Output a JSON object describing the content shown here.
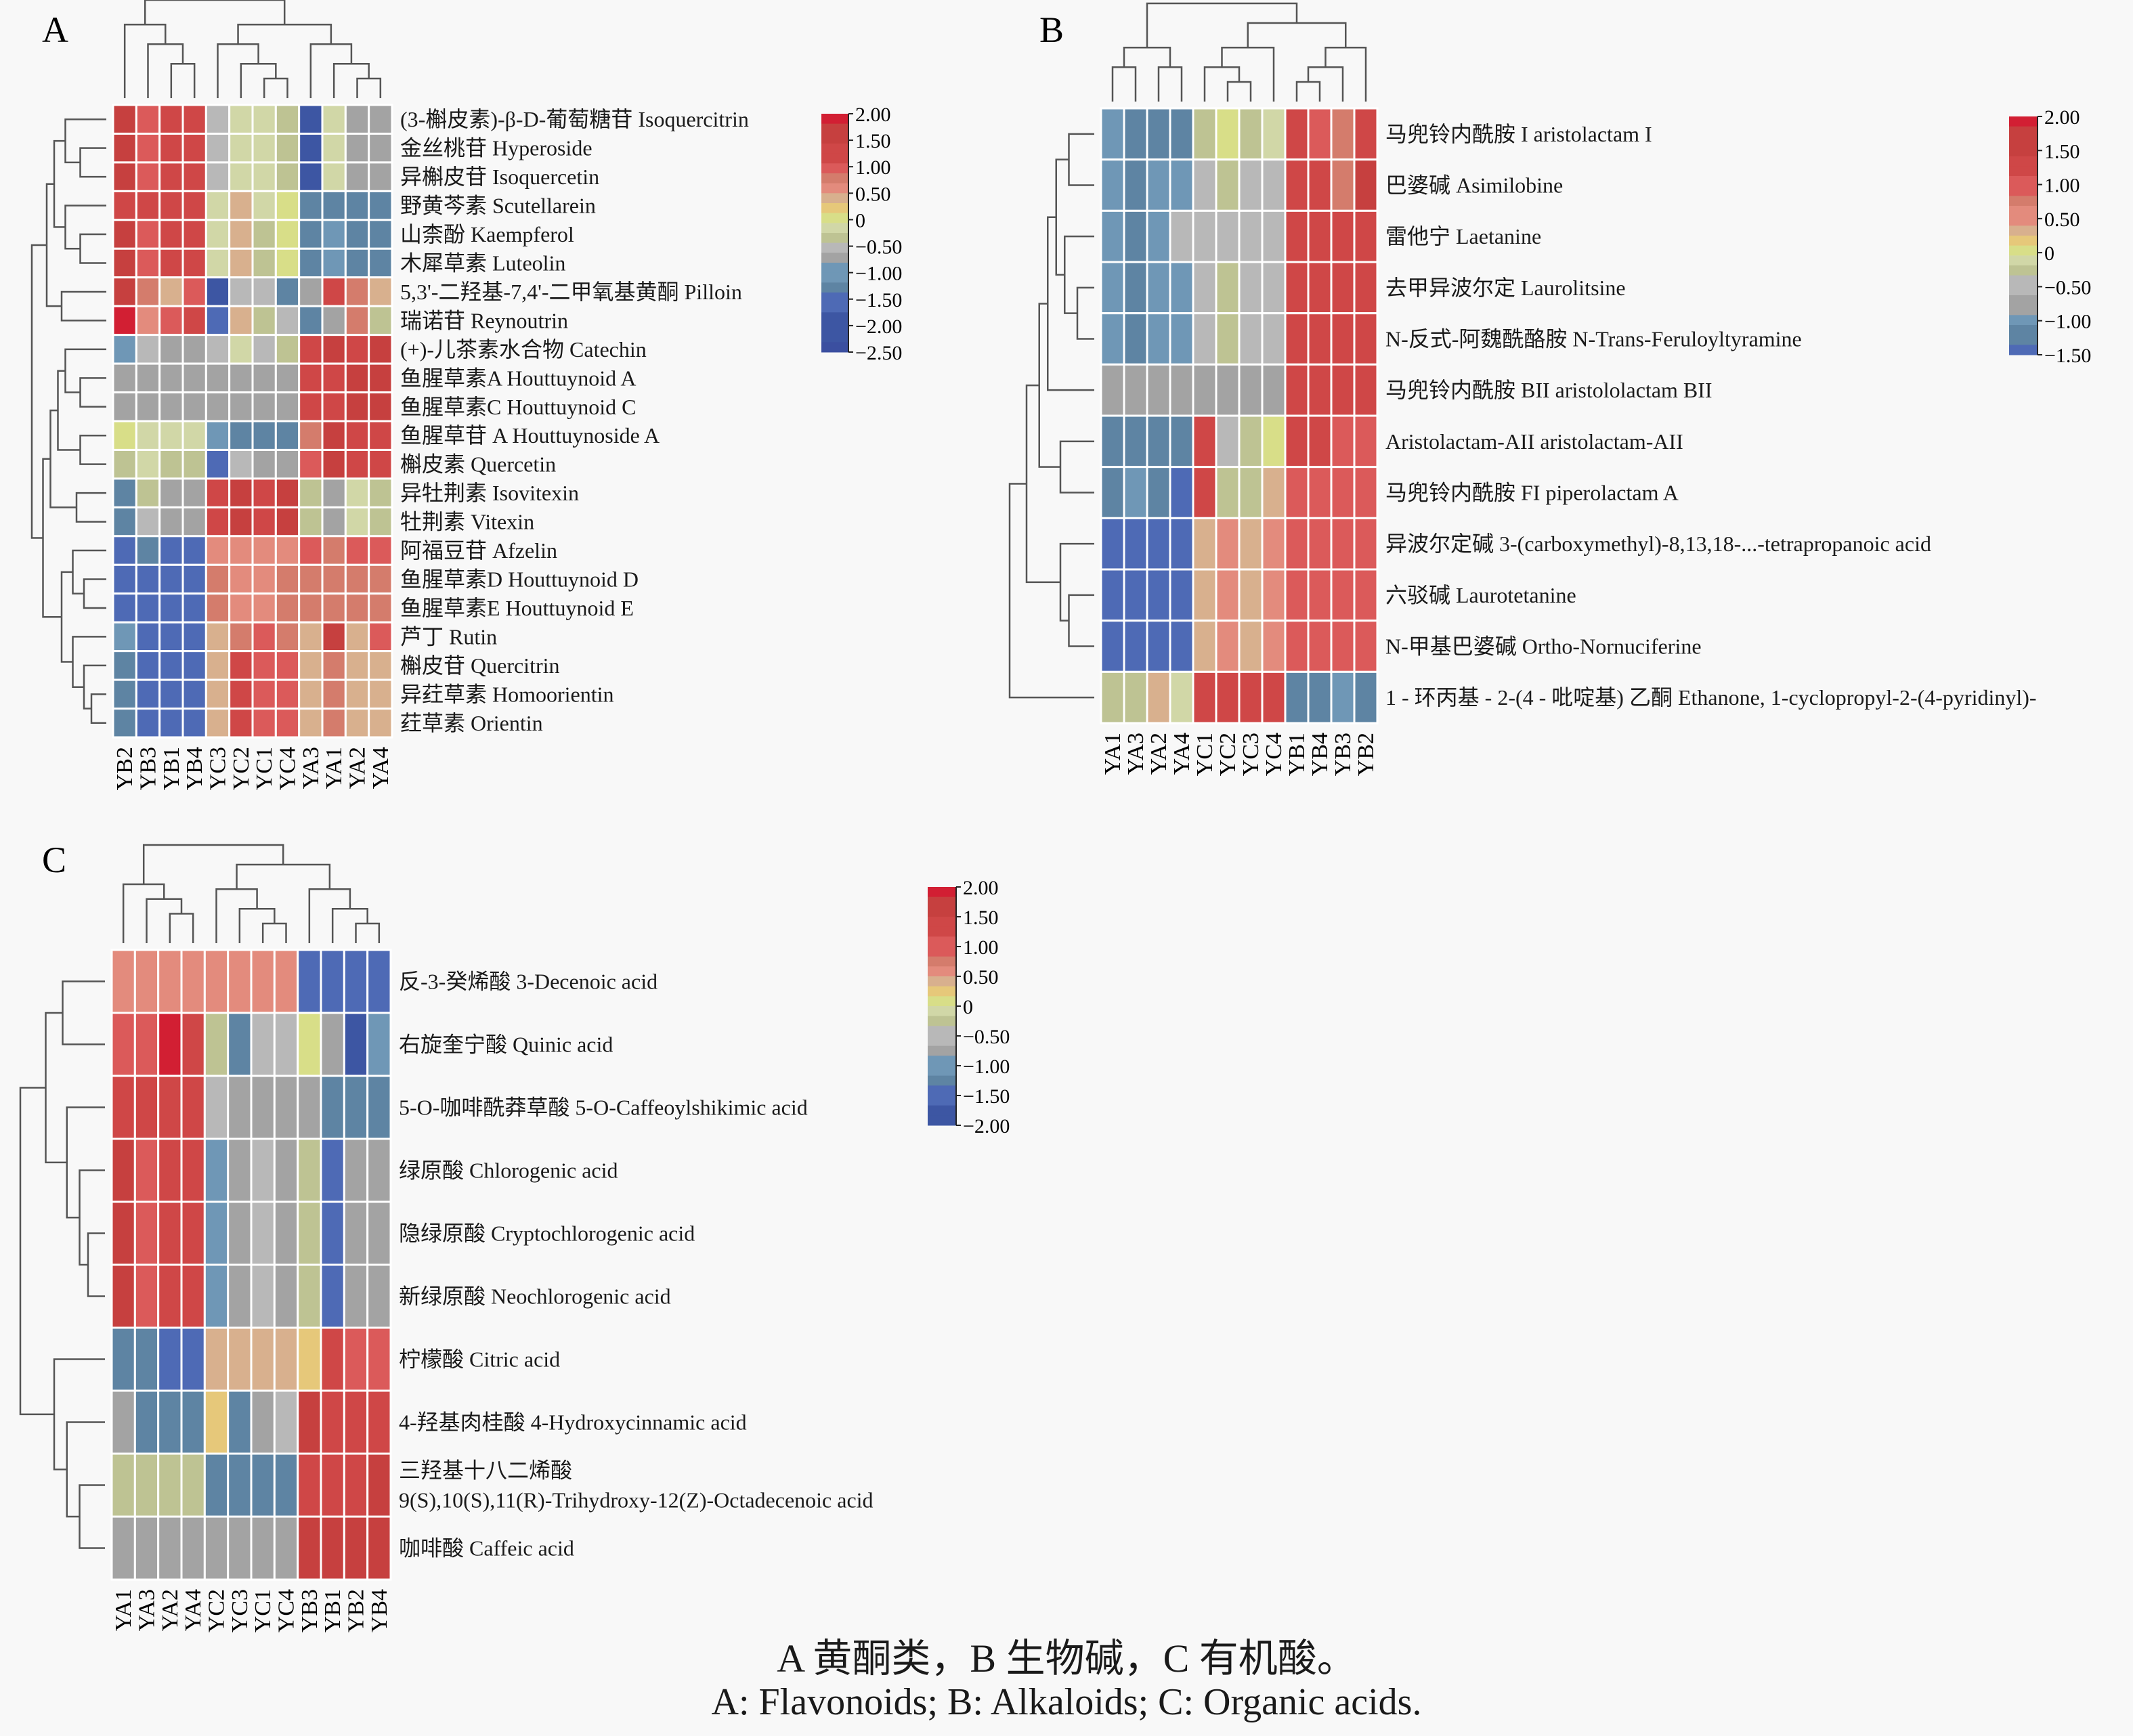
{
  "figure": {
    "caption_zh": "A 黄酮类，B 生物碱，C 有机酸。",
    "caption_en": "A: Flavonoids; B: Alkaloids; C: Organic acids."
  },
  "chart_data": [
    {
      "type": "heatmap",
      "panel": "A",
      "title": "A",
      "subtitle": "Flavonoids",
      "columns": [
        "YB2",
        "YB3",
        "YB1",
        "YB4",
        "YC3",
        "YC2",
        "YC1",
        "YC4",
        "YA3",
        "YA1",
        "YA2",
        "YA4"
      ],
      "rows": [
        "(3-槲皮素)-β-D-葡萄糖苷 Isoquercitrin",
        "金丝桃苷 Hyperoside",
        "异槲皮苷 Isoquercetin",
        "野黄芩素 Scutellarein",
        "山柰酚 Kaempferol",
        "木犀草素 Luteolin",
        "5,3'-二羟基-7,4'-二甲氧基黄酮 Pilloin",
        "瑞诺苷 Reynoutrin",
        "(+)-儿茶素水合物 Catechin",
        "鱼腥草素A Houttuynoid A",
        "鱼腥草素C Houttuynoid C",
        "鱼腥草苷 A Houttuynoside A",
        "槲皮素 Quercetin",
        "异牡荆素 Isovitexin",
        "牡荆素 Vitexin",
        "阿福豆苷 Afzelin",
        "鱼腥草素D Houttuynoid D",
        "鱼腥草素E Houttuynoid E",
        "芦丁 Rutin",
        "槲皮苷 Quercitrin",
        "异荭草素 Homoorientin",
        "荭草素 Orientin"
      ],
      "values": [
        [
          1.6,
          1.0,
          1.3,
          1.3,
          -0.6,
          -0.1,
          -0.1,
          -0.3,
          -2.0,
          -0.1,
          -0.8,
          -0.8
        ],
        [
          1.6,
          1.0,
          1.3,
          1.3,
          -0.6,
          -0.1,
          -0.1,
          -0.3,
          -1.8,
          -0.1,
          -0.8,
          -0.8
        ],
        [
          1.6,
          1.0,
          1.3,
          1.3,
          -0.6,
          -0.1,
          -0.1,
          -0.3,
          -1.8,
          -0.1,
          -0.8,
          -0.8
        ],
        [
          1.3,
          1.4,
          1.3,
          1.3,
          -0.1,
          0.4,
          -0.1,
          0.0,
          -1.3,
          -1.3,
          -1.3,
          -1.3
        ],
        [
          1.5,
          1.1,
          1.3,
          1.3,
          -0.1,
          0.4,
          -0.3,
          0.0,
          -1.3,
          -1.0,
          -1.3,
          -1.3
        ],
        [
          1.5,
          1.1,
          1.4,
          1.3,
          -0.1,
          0.4,
          -0.3,
          0.0,
          -1.3,
          -1.0,
          -1.3,
          -1.3
        ],
        [
          1.5,
          0.7,
          0.4,
          1.0,
          -2.2,
          -0.6,
          -0.6,
          -1.1,
          -0.8,
          1.3,
          0.7,
          0.4
        ],
        [
          1.9,
          0.5,
          1.0,
          1.3,
          -1.5,
          0.3,
          -0.3,
          -0.6,
          -1.3,
          -0.8,
          0.7,
          -0.3
        ],
        [
          -1.0,
          -0.6,
          -0.8,
          -0.8,
          -0.6,
          -0.1,
          -0.6,
          -0.3,
          1.3,
          1.5,
          1.3,
          1.6
        ],
        [
          -0.8,
          -0.8,
          -0.8,
          -0.8,
          -0.8,
          -0.8,
          -0.8,
          -0.8,
          1.3,
          1.3,
          1.6,
          1.6
        ],
        [
          -0.8,
          -0.8,
          -0.8,
          -0.8,
          -0.8,
          -0.8,
          -0.8,
          -0.8,
          1.4,
          1.3,
          1.6,
          1.6
        ],
        [
          0.1,
          -0.1,
          -0.1,
          -0.1,
          -1.0,
          -1.1,
          -1.1,
          -1.1,
          0.8,
          1.6,
          1.4,
          1.3
        ],
        [
          -0.3,
          -0.1,
          -0.3,
          -0.3,
          -1.4,
          -0.6,
          -0.8,
          -0.8,
          1.0,
          1.6,
          1.4,
          1.4
        ],
        [
          -1.1,
          -0.3,
          -0.8,
          -0.8,
          1.3,
          1.6,
          1.4,
          1.6,
          -0.3,
          -0.8,
          -0.1,
          -0.3
        ],
        [
          -1.1,
          -0.6,
          -0.8,
          -0.8,
          1.3,
          1.6,
          1.4,
          1.6,
          -0.3,
          -0.8,
          -0.1,
          -0.3
        ],
        [
          -1.6,
          -1.3,
          -1.4,
          -1.4,
          0.6,
          0.6,
          0.6,
          0.6,
          1.0,
          0.7,
          1.1,
          0.9
        ],
        [
          -1.4,
          -1.4,
          -1.4,
          -1.4,
          0.7,
          0.6,
          0.6,
          0.7,
          0.7,
          0.7,
          0.7,
          0.7
        ],
        [
          -1.4,
          -1.4,
          -1.4,
          -1.4,
          0.7,
          0.6,
          0.6,
          0.7,
          0.7,
          0.7,
          0.7,
          0.7
        ],
        [
          -1.0,
          -1.6,
          -1.4,
          -1.4,
          0.3,
          0.7,
          1.0,
          0.7,
          0.3,
          1.6,
          0.4,
          1.0
        ],
        [
          -1.3,
          -1.4,
          -1.4,
          -1.4,
          0.4,
          1.3,
          1.1,
          1.0,
          0.4,
          0.7,
          0.4,
          0.4
        ],
        [
          -1.3,
          -1.4,
          -1.4,
          -1.4,
          0.4,
          1.3,
          1.1,
          1.0,
          0.4,
          0.7,
          0.4,
          0.4
        ],
        [
          -1.3,
          -1.4,
          -1.4,
          -1.4,
          0.4,
          1.3,
          1.1,
          1.0,
          0.4,
          0.7,
          0.4,
          0.4
        ]
      ],
      "colorbar": {
        "ticks": [
          "2.00",
          "1.50",
          "1.00",
          "0.50",
          "0",
          "−0.50",
          "−1.00",
          "−1.50",
          "−2.00",
          "−2.50"
        ],
        "range": [
          -2.5,
          2.0
        ]
      }
    },
    {
      "type": "heatmap",
      "panel": "B",
      "title": "B",
      "subtitle": "Alkaloids",
      "columns": [
        "YA1",
        "YA3",
        "YA2",
        "YA4",
        "YC1",
        "YC2",
        "YC3",
        "YC4",
        "YB1",
        "YB4",
        "YB3",
        "YB2"
      ],
      "rows": [
        "马兜铃内酰胺 I aristolactam I",
        "巴婆碱 Asimilobine",
        "雷他宁 Laetanine",
        "去甲异波尔定 Laurolitsine",
        "N-反式-阿魏酰酪胺 N-Trans-Feruloyltyramine",
        "马兜铃内酰胺 BII aristololactam BII",
        "Aristolactam-AII aristolactam-AII",
        "马兜铃内酰胺 FI piperolactam A",
        "异波尔定碱 3-(carboxymethyl)-8,13,18-...-tetrapropanoic acid",
        "六驳碱 Laurotetanine",
        "N-甲基巴婆碱 Ortho-Nornuciferine",
        "1 - 环丙基 - 2-(4 - 吡啶基) 乙酮 Ethanone, 1-cyclopropyl-2-(4-pyridinyl)-"
      ],
      "values": [
        [
          -1.0,
          -1.2,
          -1.1,
          -1.2,
          -0.2,
          0.0,
          -0.2,
          -0.1,
          1.2,
          1.1,
          0.8,
          1.4
        ],
        [
          -1.0,
          -1.2,
          -1.0,
          -1.0,
          -0.4,
          -0.2,
          -0.4,
          -0.4,
          1.4,
          1.4,
          0.8,
          1.8
        ],
        [
          -1.0,
          -1.2,
          -1.0,
          -0.6,
          -0.5,
          -0.4,
          -0.5,
          -0.5,
          1.2,
          1.4,
          1.4,
          1.4
        ],
        [
          -1.0,
          -1.1,
          -1.0,
          -1.0,
          -0.5,
          -0.3,
          -0.5,
          -0.5,
          1.2,
          1.4,
          1.4,
          1.4
        ],
        [
          -1.0,
          -1.1,
          -1.0,
          -1.0,
          -0.5,
          -0.3,
          -0.5,
          -0.5,
          1.2,
          1.4,
          1.4,
          1.4
        ],
        [
          -0.8,
          -0.8,
          -0.8,
          -0.8,
          -0.8,
          -0.8,
          -0.8,
          -0.8,
          1.4,
          1.4,
          1.4,
          1.4
        ],
        [
          -1.2,
          -1.2,
          -1.2,
          -1.2,
          1.2,
          -0.5,
          -0.2,
          0.1,
          1.2,
          1.2,
          0.9,
          1.1
        ],
        [
          -1.2,
          -1.0,
          -1.2,
          -1.4,
          1.2,
          -0.3,
          -0.2,
          0.3,
          1.1,
          1.1,
          0.9,
          1.1
        ],
        [
          -1.4,
          -1.4,
          -1.4,
          -1.4,
          0.4,
          0.5,
          0.4,
          0.5,
          0.9,
          0.9,
          0.9,
          0.9
        ],
        [
          -1.4,
          -1.4,
          -1.4,
          -1.4,
          0.4,
          0.5,
          0.4,
          0.5,
          0.9,
          0.9,
          0.9,
          0.9
        ],
        [
          -1.4,
          -1.4,
          -1.4,
          -1.4,
          0.4,
          0.5,
          0.4,
          0.5,
          0.9,
          0.9,
          0.9,
          0.9
        ],
        [
          -0.2,
          -0.2,
          0.4,
          -0.1,
          1.3,
          1.2,
          1.2,
          1.2,
          -1.1,
          -1.2,
          -1.0,
          -1.3
        ]
      ],
      "colorbar": {
        "ticks": [
          "2.00",
          "1.50",
          "1.00",
          "0.50",
          "0",
          "−0.50",
          "−1.00",
          "−1.50"
        ],
        "range": [
          -1.5,
          2.0
        ]
      }
    },
    {
      "type": "heatmap",
      "panel": "C",
      "title": "C",
      "subtitle": "Organic acids",
      "columns": [
        "YA1",
        "YA3",
        "YA2",
        "YA4",
        "YC2",
        "YC3",
        "YC1",
        "YC4",
        "YB3",
        "YB1",
        "YB2",
        "YB4"
      ],
      "rows": [
        "反-3-癸烯酸 3-Decenoic acid",
        "右旋奎宁酸 Quinic acid",
        "5-O-咖啡酰莽草酸 5-O-Caffeoylshikimic acid",
        "绿原酸 Chlorogenic acid",
        "隐绿原酸 Cryptochlorogenic acid",
        "新绿原酸 Neochlorogenic acid",
        "柠檬酸 Citric acid",
        "4-羟基肉桂酸 4-Hydroxycinnamic acid",
        "三羟基十八二烯酸 9(S),10(S),11(R)-Trihydroxy-12(Z)-Octadecenoic acid",
        "咖啡酸 Caffeic acid"
      ],
      "values": [
        [
          0.6,
          0.6,
          0.6,
          0.6,
          0.6,
          0.6,
          0.6,
          0.6,
          -1.6,
          -1.6,
          -1.6,
          -1.7
        ],
        [
          0.9,
          0.9,
          1.9,
          1.2,
          -0.2,
          -1.1,
          -0.4,
          -0.6,
          0.0,
          -0.8,
          -1.9,
          -1.0
        ],
        [
          1.3,
          1.2,
          1.2,
          1.4,
          -0.4,
          -0.8,
          -0.8,
          -0.8,
          -0.8,
          -1.1,
          -1.3,
          -1.1
        ],
        [
          1.7,
          0.9,
          1.2,
          1.2,
          -0.9,
          -0.8,
          -0.4,
          -0.8,
          -0.2,
          -1.6,
          -0.8,
          -0.8
        ],
        [
          1.7,
          0.9,
          1.3,
          1.2,
          -0.9,
          -0.8,
          -0.4,
          -0.8,
          -0.2,
          -1.6,
          -0.8,
          -0.8
        ],
        [
          1.7,
          0.9,
          1.3,
          1.2,
          -0.9,
          -0.8,
          -0.4,
          -0.8,
          -0.2,
          -1.6,
          -0.8,
          -0.8
        ],
        [
          -1.3,
          -1.3,
          -1.6,
          -1.4,
          0.3,
          0.4,
          0.3,
          0.3,
          0.2,
          1.4,
          0.9,
          0.9
        ],
        [
          -0.8,
          -1.3,
          -1.1,
          -1.1,
          0.2,
          -1.1,
          -0.8,
          -0.6,
          1.5,
          1.2,
          1.2,
          1.2
        ],
        [
          -0.3,
          -0.3,
          -0.3,
          -0.3,
          -1.3,
          -1.3,
          -1.1,
          -1.3,
          1.2,
          1.4,
          1.4,
          1.5
        ],
        [
          -0.8,
          -0.8,
          -0.8,
          -0.8,
          -0.8,
          -0.8,
          -0.8,
          -0.8,
          1.5,
          1.5,
          1.5,
          1.5
        ]
      ],
      "colorbar": {
        "ticks": [
          "2.00",
          "1.50",
          "1.00",
          "0.50",
          "0",
          "−0.50",
          "−1.00",
          "−1.50",
          "−2.00"
        ],
        "range": [
          -2.0,
          2.0
        ]
      }
    }
  ]
}
